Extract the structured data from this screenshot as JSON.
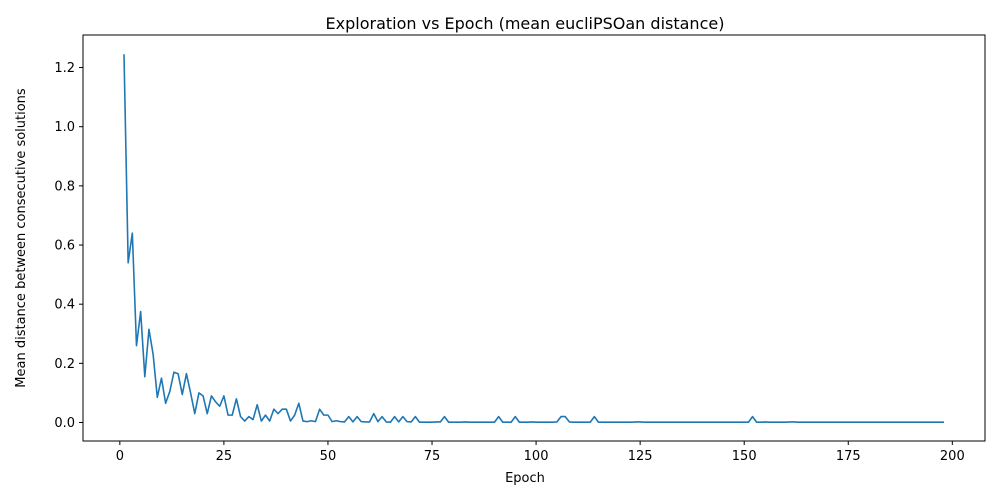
{
  "chart_data": {
    "type": "line",
    "title": "Exploration vs Epoch (mean eucliPSOan distance)",
    "xlabel": "Epoch",
    "ylabel": "Mean distance between consecutive solutions",
    "xlim": [
      -8.85,
      207.85
    ],
    "ylim": [
      -0.0625,
      1.31
    ],
    "xticks": [
      0,
      25,
      50,
      75,
      100,
      125,
      150,
      175,
      200
    ],
    "xtick_labels": [
      "0",
      "25",
      "50",
      "75",
      "100",
      "125",
      "150",
      "175",
      "200"
    ],
    "yticks": [
      0.0,
      0.2,
      0.4,
      0.6,
      0.8,
      1.0,
      1.2
    ],
    "ytick_labels": [
      "0.0",
      "0.2",
      "0.4",
      "0.6",
      "0.8",
      "1.0",
      "1.2"
    ],
    "grid": false,
    "legend": "none",
    "series": [
      {
        "color": "#1f77b4",
        "x": [
          1,
          2,
          3,
          4,
          5,
          6,
          7,
          8,
          9,
          10,
          11,
          12,
          13,
          14,
          15,
          16,
          17,
          18,
          19,
          20,
          21,
          22,
          23,
          24,
          25,
          26,
          27,
          28,
          29,
          30,
          31,
          32,
          33,
          34,
          35,
          36,
          37,
          38,
          39,
          40,
          41,
          42,
          43,
          44,
          45,
          46,
          47,
          48,
          49,
          50,
          51,
          52,
          53,
          54,
          55,
          56,
          57,
          58,
          59,
          60,
          61,
          62,
          63,
          64,
          65,
          66,
          67,
          68,
          69,
          70,
          71,
          72,
          73,
          74,
          75,
          76,
          77,
          78,
          79,
          80,
          81,
          82,
          83,
          84,
          85,
          86,
          87,
          88,
          89,
          90,
          91,
          92,
          93,
          94,
          95,
          96,
          97,
          98,
          99,
          100,
          101,
          102,
          103,
          104,
          105,
          106,
          107,
          108,
          109,
          110,
          111,
          112,
          113,
          114,
          115,
          116,
          117,
          118,
          119,
          120,
          121,
          122,
          123,
          124,
          125,
          126,
          127,
          128,
          129,
          130,
          131,
          132,
          133,
          134,
          135,
          136,
          137,
          138,
          139,
          140,
          141,
          142,
          143,
          144,
          145,
          146,
          147,
          148,
          149,
          150,
          151,
          152,
          153,
          154,
          155,
          156,
          157,
          158,
          159,
          160,
          161,
          162,
          163,
          164,
          165,
          166,
          167,
          168,
          169,
          170,
          171,
          172,
          173,
          174,
          175,
          176,
          177,
          178,
          179,
          180,
          181,
          182,
          183,
          184,
          185,
          186,
          187,
          188,
          189,
          190,
          191,
          192,
          193,
          194,
          195,
          196,
          197,
          198
        ],
        "y": [
          1.245,
          0.54,
          0.64,
          0.26,
          0.375,
          0.155,
          0.315,
          0.23,
          0.085,
          0.15,
          0.065,
          0.105,
          0.17,
          0.165,
          0.095,
          0.165,
          0.1,
          0.03,
          0.1,
          0.09,
          0.03,
          0.09,
          0.07,
          0.055,
          0.09,
          0.025,
          0.025,
          0.08,
          0.02,
          0.005,
          0.02,
          0.01,
          0.06,
          0.005,
          0.025,
          0.005,
          0.045,
          0.03,
          0.045,
          0.045,
          0.005,
          0.025,
          0.065,
          0.005,
          0.003,
          0.006,
          0.003,
          0.045,
          0.025,
          0.025,
          0.003,
          0.006,
          0.003,
          0.002,
          0.02,
          0.002,
          0.02,
          0.003,
          0.002,
          0.002,
          0.03,
          0.003,
          0.02,
          0.002,
          0.001,
          0.02,
          0.002,
          0.02,
          0.003,
          0.002,
          0.02,
          0.001,
          0.001,
          0.001,
          0.001,
          0.002,
          0.002,
          0.02,
          0.001,
          0.001,
          0.001,
          0.001,
          0.002,
          0.001,
          0.001,
          0.001,
          0.001,
          0.001,
          0.001,
          0.001,
          0.02,
          0.001,
          0.001,
          0.001,
          0.02,
          0.001,
          0.001,
          0.001,
          0.002,
          0.001,
          0.001,
          0.001,
          0.001,
          0.001,
          0.002,
          0.02,
          0.02,
          0.002,
          0.001,
          0.001,
          0.001,
          0.001,
          0.001,
          0.02,
          0.001,
          0.001,
          0.001,
          0.001,
          0.001,
          0.001,
          0.001,
          0.001,
          0.001,
          0.002,
          0.002,
          0.001,
          0.001,
          0.001,
          0.001,
          0.001,
          0.001,
          0.001,
          0.001,
          0.001,
          0.001,
          0.001,
          0.001,
          0.001,
          0.001,
          0.001,
          0.001,
          0.001,
          0.001,
          0.001,
          0.001,
          0.001,
          0.001,
          0.001,
          0.001,
          0.001,
          0.001,
          0.02,
          0.001,
          0.001,
          0.002,
          0.001,
          0.001,
          0.001,
          0.001,
          0.001,
          0.002,
          0.002,
          0.001,
          0.001,
          0.001,
          0.001,
          0.001,
          0.001,
          0.001,
          0.001,
          0.001,
          0.001,
          0.001,
          0.001,
          0.001,
          0.001,
          0.001,
          0.001,
          0.001,
          0.001,
          0.001,
          0.001,
          0.001,
          0.001,
          0.001,
          0.001,
          0.001,
          0.001,
          0.001,
          0.001,
          0.001,
          0.001,
          0.001,
          0.001,
          0.001,
          0.001,
          0.001,
          0.001
        ]
      }
    ]
  }
}
